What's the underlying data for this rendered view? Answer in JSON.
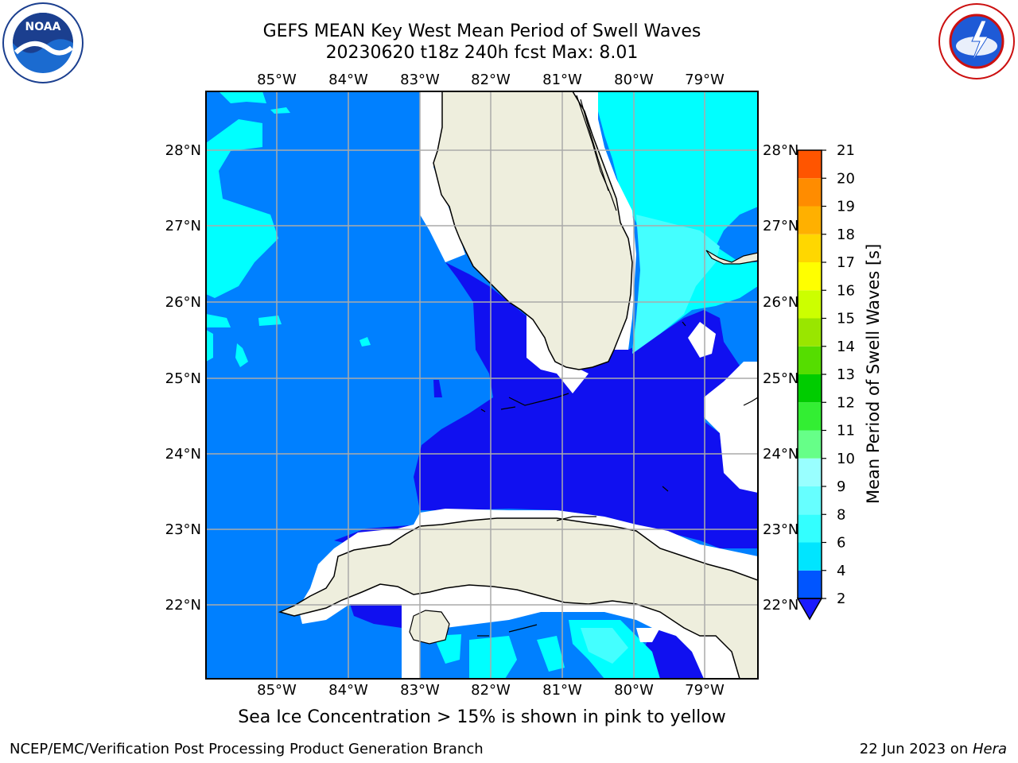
{
  "title_line1": "GEFS MEAN Key West Mean Period of Swell Waves",
  "title_line2": "20230620 t18z 240h fcst   Max: 8.01",
  "lon_labels": [
    "85°W",
    "84°W",
    "83°W",
    "82°W",
    "81°W",
    "80°W",
    "79°W"
  ],
  "lat_labels": [
    "28°N",
    "27°N",
    "26°N",
    "25°N",
    "24°N",
    "23°N",
    "22°N"
  ],
  "colorbar": {
    "label": "Mean Period of Swell Waves [s]",
    "ticks": [
      "2",
      "4",
      "6",
      "8",
      "9",
      "10",
      "11",
      "12",
      "13",
      "14",
      "15",
      "16",
      "17",
      "18",
      "19",
      "20",
      "21"
    ],
    "colors": [
      "#0055ff",
      "#00e5ff",
      "#33ffff",
      "#66ffff",
      "#99ffff",
      "#66ff88",
      "#33ee33",
      "#00cc00",
      "#55dd00",
      "#99e600",
      "#ccff00",
      "#ffff00",
      "#ffd700",
      "#ffb000",
      "#ff8c00",
      "#ff5500",
      "#ff2200",
      "#ff0000"
    ],
    "under_color": "#1a1aff"
  },
  "map_colors": {
    "ocean_2_4": "#0080ff",
    "ocean_lt2": "#1010f0",
    "cyan_4_6": "#00ffff",
    "cyan_6_8": "#44ffff",
    "land": "#eeeedd",
    "grid": "#aaaaaa"
  },
  "sea_ice_note": "Sea Ice Concentration > 15% is shown in pink to yellow",
  "footer_left": "NCEP/EMC/Verification Post Processing Product Generation Branch",
  "footer_date": "22 Jun 2023 on ",
  "footer_machine": "Hera",
  "logos": {
    "left": "NOAA",
    "right": "NATIONAL WEATHER SERVICE"
  }
}
